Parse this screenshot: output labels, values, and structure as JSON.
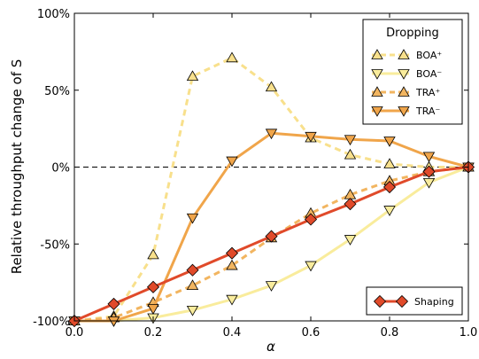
{
  "chart_data": {
    "type": "line",
    "xlabel": "α",
    "ylabel": "Relative throughput change of S",
    "xlim": [
      0.0,
      1.0
    ],
    "ylim": [
      -100,
      100
    ],
    "x_ticks": [
      "0.0",
      "0.2",
      "0.4",
      "0.6",
      "0.8",
      "1.0"
    ],
    "y_ticks": [
      "-100%",
      "-50%",
      "0%",
      "50%",
      "100%"
    ],
    "x_tick_values": [
      0.0,
      0.2,
      0.4,
      0.6,
      0.8,
      1.0
    ],
    "y_tick_values": [
      -100,
      -50,
      0,
      50,
      100
    ],
    "reference_line": {
      "y": 0,
      "style": "dashed",
      "color": "#000000"
    },
    "legend_dropping": {
      "title": "Dropping",
      "placement": "top-right",
      "items": [
        "BOA⁺",
        "BOA⁻",
        "TRA⁺",
        "TRA⁻"
      ]
    },
    "legend_shaping": {
      "placement": "bottom-right",
      "items": [
        "Shaping"
      ]
    },
    "series": [
      {
        "name": "BOA⁺",
        "legend": "dropping",
        "color": "#f8e08c",
        "dash": "dashed",
        "marker": "triangle-up",
        "x": [
          0.0,
          0.1,
          0.2,
          0.3,
          0.4,
          0.5,
          0.6,
          0.7,
          0.8,
          0.9,
          1.0
        ],
        "y": [
          -100,
          -97,
          -57,
          59,
          71,
          52,
          19,
          8,
          2,
          0,
          0
        ]
      },
      {
        "name": "BOA⁻",
        "legend": "dropping",
        "color": "#f9ec9c",
        "dash": "solid",
        "marker": "triangle-down",
        "x": [
          0.0,
          0.1,
          0.2,
          0.3,
          0.4,
          0.5,
          0.6,
          0.7,
          0.8,
          0.9,
          1.0
        ],
        "y": [
          -100,
          -100,
          -98,
          -93,
          -86,
          -77,
          -64,
          -47,
          -28,
          -10,
          0
        ]
      },
      {
        "name": "TRA⁺",
        "legend": "dropping",
        "color": "#f2b560",
        "dash": "dashed",
        "marker": "triangle-up",
        "x": [
          0.0,
          0.1,
          0.2,
          0.3,
          0.4,
          0.5,
          0.6,
          0.7,
          0.8,
          0.9,
          1.0
        ],
        "y": [
          -100,
          -98,
          -88,
          -77,
          -64,
          -46,
          -30,
          -18,
          -9,
          -3,
          0
        ]
      },
      {
        "name": "TRA⁻",
        "legend": "dropping",
        "color": "#f0a54a",
        "dash": "solid",
        "marker": "triangle-down",
        "x": [
          0.0,
          0.1,
          0.2,
          0.3,
          0.4,
          0.5,
          0.6,
          0.7,
          0.8,
          0.9,
          1.0
        ],
        "y": [
          -100,
          -100,
          -92,
          -33,
          4,
          22,
          20,
          18,
          17,
          7,
          0
        ]
      },
      {
        "name": "Shaping",
        "legend": "shaping",
        "color": "#e04a2a",
        "dash": "solid",
        "marker": "diamond",
        "x": [
          0.0,
          0.1,
          0.2,
          0.3,
          0.4,
          0.5,
          0.6,
          0.7,
          0.8,
          0.9,
          1.0
        ],
        "y": [
          -100,
          -89,
          -78,
          -67,
          -56,
          -45,
          -34,
          -24,
          -13,
          -3,
          0
        ]
      }
    ]
  }
}
